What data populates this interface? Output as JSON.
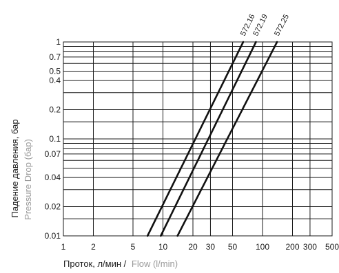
{
  "chart_data": {
    "type": "line",
    "x_scale": "log",
    "y_scale": "log",
    "xlim": [
      1,
      500
    ],
    "ylim": [
      0.01,
      1
    ],
    "grid": true,
    "x_ticks": [
      1,
      2,
      5,
      10,
      20,
      30,
      50,
      100,
      200,
      300,
      500
    ],
    "x_tick_labels": [
      "1",
      "2",
      "5",
      "10",
      "20",
      "30",
      "50",
      "100",
      "200",
      "300",
      "500"
    ],
    "y_ticks": [
      0.01,
      0.02,
      0.04,
      0.07,
      0.1,
      0.2,
      0.4,
      0.5,
      0.7,
      1
    ],
    "y_tick_labels": [
      "0.01",
      "0.02",
      "0.04",
      "0.07",
      "0.1",
      "0.2",
      "0.4",
      "0.5",
      "0.7",
      "1"
    ],
    "y_grid_lines": [
      0.01,
      0.015,
      0.02,
      0.03,
      0.04,
      0.05,
      0.06,
      0.07,
      0.08,
      0.09,
      0.1,
      0.15,
      0.2,
      0.3,
      0.4,
      0.5,
      0.6,
      0.7,
      0.8,
      0.9,
      1
    ],
    "xlabel_primary": "Проток, л/мин /",
    "xlabel_secondary": "Flow (l/min)",
    "ylabel_primary": "Падение давления, бар",
    "ylabel_secondary": "Pressure Drop (бар)",
    "secondary_label_color": "#9a9a9a",
    "series": [
      {
        "name": "572.16",
        "x": [
          7,
          64
        ],
        "y": [
          0.01,
          1
        ]
      },
      {
        "name": "572.19",
        "x": [
          9.5,
          86
        ],
        "y": [
          0.01,
          1
        ]
      },
      {
        "name": "572.25",
        "x": [
          14,
          140
        ],
        "y": [
          0.01,
          1
        ]
      }
    ]
  }
}
